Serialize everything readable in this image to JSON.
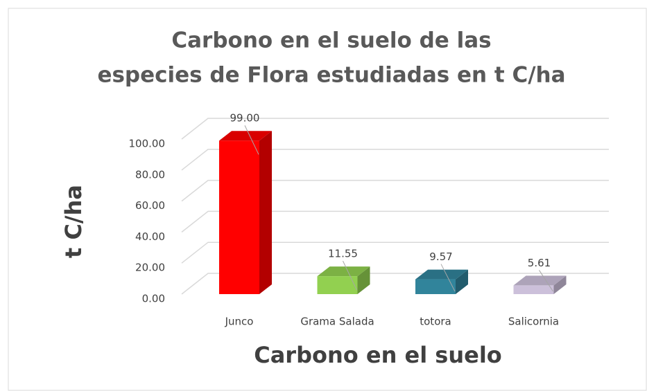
{
  "chart_data": {
    "type": "bar3d",
    "title": "Carbono en el suelo de las especies de Flora estudiadas en t C/ha",
    "x_label": "Carbono en el suelo",
    "y_label": "t C/ha",
    "categories": [
      "Junco",
      "Grama Salada",
      "totora",
      "Salicornia"
    ],
    "values": [
      99.0,
      11.55,
      9.57,
      5.61
    ],
    "value_labels": [
      "99.00",
      "11.55",
      "9.57",
      "5.61"
    ],
    "colors": [
      "#ff0000",
      "#92d050",
      "#31849b",
      "#ccc0da"
    ],
    "ylim": [
      0,
      100
    ],
    "yticks": [
      {
        "value": 0,
        "label": "0.00"
      },
      {
        "value": 20,
        "label": "20.00"
      },
      {
        "value": 40,
        "label": "40.00"
      },
      {
        "value": 60,
        "label": "60.00"
      },
      {
        "value": 80,
        "label": "80.00"
      },
      {
        "value": 100,
        "label": "100.00"
      }
    ],
    "grid": true
  }
}
